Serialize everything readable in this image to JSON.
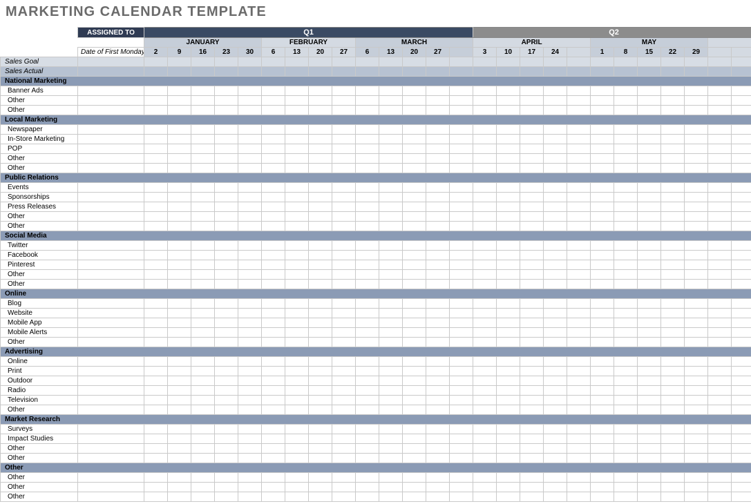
{
  "title": "MARKETING CALENDAR TEMPLATE",
  "title_color": "#6b6b6b",
  "header": {
    "assigned_label": "ASSIGNED TO",
    "assigned_bg": "#2f3b53",
    "date_first_monday_label": "Date of First Monday"
  },
  "quarters": [
    {
      "label": "Q1",
      "bg": "#3a4a63"
    },
    {
      "label": "Q2",
      "bg": "#8c8c8c"
    }
  ],
  "months": [
    {
      "label": "JANUARY",
      "bg": "#c6ced9",
      "span": 5
    },
    {
      "label": "FEBRUARY",
      "bg": "#d4dae2",
      "span": 4
    },
    {
      "label": "MARCH",
      "bg": "#c6ced9",
      "span": 5
    },
    {
      "label": "APRIL",
      "bg": "#d4dae2",
      "span": 5
    },
    {
      "label": "MAY",
      "bg": "#c6ced9",
      "span": 5
    },
    {
      "label": "",
      "bg": "#d4dae2",
      "span": 2
    }
  ],
  "weeks": [
    {
      "n": "2",
      "bg": "#c6ced9"
    },
    {
      "n": "9",
      "bg": "#c6ced9"
    },
    {
      "n": "16",
      "bg": "#c6ced9"
    },
    {
      "n": "23",
      "bg": "#c6ced9"
    },
    {
      "n": "30",
      "bg": "#c6ced9"
    },
    {
      "n": "6",
      "bg": "#d4dae2"
    },
    {
      "n": "13",
      "bg": "#d4dae2"
    },
    {
      "n": "20",
      "bg": "#d4dae2"
    },
    {
      "n": "27",
      "bg": "#d4dae2"
    },
    {
      "n": "6",
      "bg": "#c6ced9"
    },
    {
      "n": "13",
      "bg": "#c6ced9"
    },
    {
      "n": "20",
      "bg": "#c6ced9"
    },
    {
      "n": "27",
      "bg": "#c6ced9"
    },
    {
      "n": "",
      "bg": "#c6ced9"
    },
    {
      "n": "3",
      "bg": "#d4dae2"
    },
    {
      "n": "10",
      "bg": "#d4dae2"
    },
    {
      "n": "17",
      "bg": "#d4dae2"
    },
    {
      "n": "24",
      "bg": "#d4dae2"
    },
    {
      "n": "",
      "bg": "#d4dae2"
    },
    {
      "n": "1",
      "bg": "#c6ced9"
    },
    {
      "n": "8",
      "bg": "#c6ced9"
    },
    {
      "n": "15",
      "bg": "#c6ced9"
    },
    {
      "n": "22",
      "bg": "#c6ced9"
    },
    {
      "n": "29",
      "bg": "#c6ced9"
    },
    {
      "n": "",
      "bg": "#d4dae2"
    },
    {
      "n": "",
      "bg": "#d4dae2"
    }
  ],
  "sales_rows": [
    {
      "label": "Sales Goal",
      "bg": "#d7dde5"
    },
    {
      "label": "Sales Actual",
      "bg": "#b7c2d2"
    }
  ],
  "section_bg": "#8b9bb5",
  "sections": [
    {
      "label": "National Marketing",
      "items": [
        "Banner Ads",
        "Other",
        "Other"
      ]
    },
    {
      "label": "Local Marketing",
      "items": [
        "Newspaper",
        "In-Store Marketing",
        "POP",
        "Other",
        "Other"
      ]
    },
    {
      "label": "Public Relations",
      "items": [
        "Events",
        "Sponsorships",
        "Press Releases",
        "Other",
        "Other"
      ]
    },
    {
      "label": "Social Media",
      "items": [
        "Twitter",
        "Facebook",
        "Pinterest",
        "Other",
        "Other"
      ]
    },
    {
      "label": "Online",
      "items": [
        "Blog",
        "Website",
        "Mobile App",
        "Mobile Alerts",
        "Other"
      ]
    },
    {
      "label": "Advertising",
      "items": [
        "Online",
        "Print",
        "Outdoor",
        "Radio",
        "Television",
        "Other"
      ]
    },
    {
      "label": "Market Research",
      "items": [
        "Surveys",
        "Impact Studies",
        "Other",
        "Other"
      ]
    },
    {
      "label": "Other",
      "items": [
        "Other",
        "Other",
        "Other"
      ]
    }
  ],
  "week_count": 26,
  "q1_weeks": 14,
  "q2_weeks": 12,
  "colors": {
    "cell_bg": "#ffffff",
    "border": "#c9c9c9",
    "text": "#000000"
  }
}
